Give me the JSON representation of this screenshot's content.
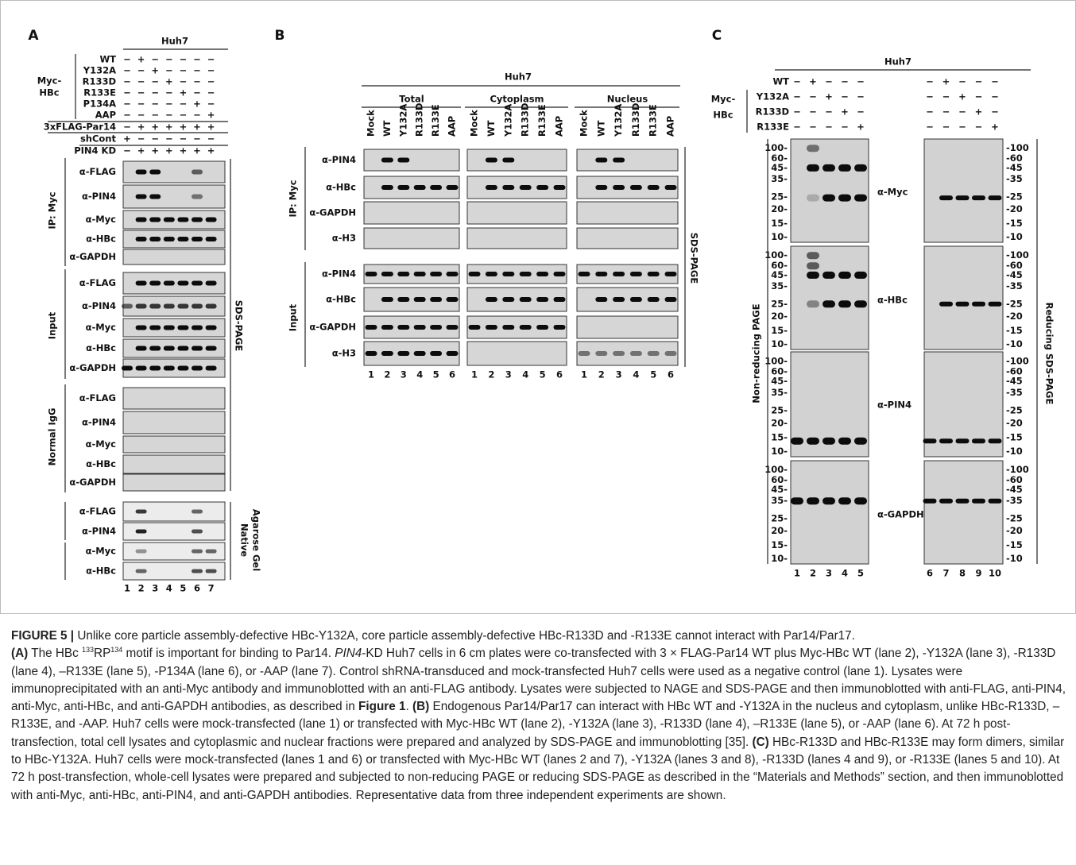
{
  "panel_a": {
    "label": "A",
    "cell_line": "Huh7",
    "group_label": [
      "Myc-",
      "HBc"
    ],
    "conditions": [
      {
        "name": "WT",
        "signs": [
          "−",
          "+",
          "−",
          "−",
          "−",
          "−",
          "−"
        ]
      },
      {
        "name": "Y132A",
        "signs": [
          "−",
          "−",
          "+",
          "−",
          "−",
          "−",
          "−"
        ]
      },
      {
        "name": "R133D",
        "signs": [
          "−",
          "−",
          "−",
          "+",
          "−",
          "−",
          "−"
        ]
      },
      {
        "name": "R133E",
        "signs": [
          "−",
          "−",
          "−",
          "−",
          "+",
          "−",
          "−"
        ]
      },
      {
        "name": "P134A",
        "signs": [
          "−",
          "−",
          "−",
          "−",
          "−",
          "+",
          "−"
        ]
      },
      {
        "name": "AAP",
        "signs": [
          "−",
          "−",
          "−",
          "−",
          "−",
          "−",
          "+"
        ]
      },
      {
        "name": "3xFLAG-Par14",
        "signs": [
          "−",
          "+",
          "+",
          "+",
          "+",
          "+",
          "+"
        ]
      },
      {
        "name": "shCont",
        "signs": [
          "+",
          "−",
          "−",
          "−",
          "−",
          "−",
          "−"
        ]
      },
      {
        "name": "PIN4 KD",
        "signs": [
          "−",
          "+",
          "+",
          "+",
          "+",
          "+",
          "+"
        ]
      }
    ],
    "sections": [
      {
        "name": "IP: Myc",
        "blots": [
          "α-FLAG",
          "α-PIN4",
          "α-Myc",
          "α-HBc",
          "α-GAPDH"
        ]
      },
      {
        "name": "Input",
        "blots": [
          "α-FLAG",
          "α-PIN4",
          "α-Myc",
          "α-HBc",
          "α-GAPDH"
        ]
      },
      {
        "name": "Normal IgG",
        "blots": [
          "α-FLAG",
          "α-PIN4",
          "α-Myc",
          "α-HBc",
          "α-GAPDH"
        ]
      }
    ],
    "native": {
      "name": [
        "Native",
        "Agarose Gel"
      ],
      "blots": [
        "α-FLAG",
        "α-PIN4",
        "α-Myc",
        "α-HBc"
      ]
    },
    "sds_label": "SDS-PAGE",
    "lanes": [
      1,
      2,
      3,
      4,
      5,
      6,
      7
    ]
  },
  "panel_b": {
    "label": "B",
    "cell_line": "Huh7",
    "groups": [
      "Total",
      "Cytoplasm",
      "Nucleus"
    ],
    "lane_headers": [
      "Mock",
      "WT",
      "Y132A",
      "R133D",
      "R133E",
      "AAP"
    ],
    "sections": [
      {
        "name": "IP: Myc",
        "blots": [
          "α-PIN4",
          "α-HBc",
          "α-GAPDH",
          "α-H3"
        ]
      },
      {
        "name": "Input",
        "blots": [
          "α-PIN4",
          "α-HBc",
          "α-GAPDH",
          "α-H3"
        ]
      }
    ],
    "sds_label": "SDS-PAGE",
    "lanes": [
      1,
      2,
      3,
      4,
      5,
      6
    ]
  },
  "panel_c": {
    "label": "C",
    "cell_line": "Huh7",
    "group_label": [
      "Myc-",
      "HBc"
    ],
    "conditions": [
      {
        "name": "WT",
        "signs": [
          "−",
          "+",
          "−",
          "−",
          "−",
          "−",
          "+",
          "−",
          "−",
          "−"
        ]
      },
      {
        "name": "Y132A",
        "signs": [
          "−",
          "−",
          "+",
          "−",
          "−",
          "−",
          "−",
          "+",
          "−",
          "−"
        ]
      },
      {
        "name": "R133D",
        "signs": [
          "−",
          "−",
          "−",
          "+",
          "−",
          "−",
          "−",
          "−",
          "+",
          "−"
        ]
      },
      {
        "name": "R133E",
        "signs": [
          "−",
          "−",
          "−",
          "−",
          "+",
          "−",
          "−",
          "−",
          "−",
          "+"
        ]
      }
    ],
    "markers_left": [
      "100-",
      "60-",
      "45-",
      "35-",
      "25-",
      "20-",
      "15-",
      "10-"
    ],
    "markers_right": [
      "-100",
      "-60",
      "-45",
      "-35",
      "-25",
      "-20",
      "-15",
      "-10"
    ],
    "blots": [
      "α-Myc",
      "α-HBc",
      "α-PIN4",
      "α-GAPDH"
    ],
    "left_gel": "Non-reducing PAGE",
    "right_gel": "Reducing SDS-PAGE",
    "lanes": [
      1,
      2,
      3,
      4,
      5,
      6,
      7,
      8,
      9,
      10
    ]
  },
  "caption": {
    "title": [
      {
        "text": "FIGURE 5 | ",
        "bold": true
      },
      {
        "text": "Unlike core particle assembly-defective HBc-Y132A, core particle assembly-defective HBc-R133D and -R133E cannot interact with Par14/Par17."
      }
    ],
    "body": [
      {
        "text": "(A)",
        "bold": true
      },
      {
        "text": " The HBc "
      },
      {
        "text": "133",
        "sup": true
      },
      {
        "text": "RP"
      },
      {
        "text": "134",
        "sup": true
      },
      {
        "text": " motif is important for binding to Par14. "
      },
      {
        "text": "PIN4",
        "italic": true
      },
      {
        "text": "-KD Huh7 cells in 6 cm plates were co-transfected with 3 × FLAG-Par14 WT plus Myc-HBc WT (lane 2), -Y132A (lane 3), -R133D (lane 4), –R133E (lane 5), -P134A (lane 6), or -AAP (lane 7). Control shRNA-transduced and mock-transfected Huh7 cells were used as a negative control (lane 1). Lysates were immunoprecipitated with an anti-Myc antibody and immunoblotted with an anti-FLAG antibody. Lysates were subjected to NAGE and SDS-PAGE and then immunoblotted with anti-FLAG, anti-PIN4, anti-Myc, anti-HBc, and anti-GAPDH antibodies, as described in "
      },
      {
        "text": "Figure 1",
        "bold": true
      },
      {
        "text": ". "
      },
      {
        "text": "(B)",
        "bold": true
      },
      {
        "text": " Endogenous Par14/Par17 can interact with HBc WT and -Y132A in the nucleus and cytoplasm, unlike HBc-R133D, –R133E, and -AAP. Huh7 cells were mock-transfected (lane 1) or transfected with Myc-HBc WT (lane 2), -Y132A (lane 3), -R133D (lane 4), –R133E (lane 5), or -AAP (lane 6). At 72 h post-transfection, total cell lysates and cytoplasmic and nuclear fractions were prepared and analyzed by SDS-PAGE and immunoblotting [35]. "
      },
      {
        "text": "(C)",
        "bold": true
      },
      {
        "text": " HBc-R133D and HBc-R133E may form dimers, similar to HBc-Y132A. Huh7 cells were mock-transfected (lanes 1 and 6) or transfected with Myc-HBc WT (lanes 2 and 7), -Y132A (lanes 3 and 8), -R133D (lanes 4 and 9), or -R133E (lanes 5 and 10). At 72 h post-transfection, whole-cell lysates were prepared and subjected to non-reducing PAGE or reducing SDS-PAGE as described in the “Materials and Methods” section, and then immunoblotted with anti-Myc, anti-HBc, anti-PIN4, and anti-GAPDH antibodies. Representative data from three independent experiments are shown."
      }
    ]
  }
}
